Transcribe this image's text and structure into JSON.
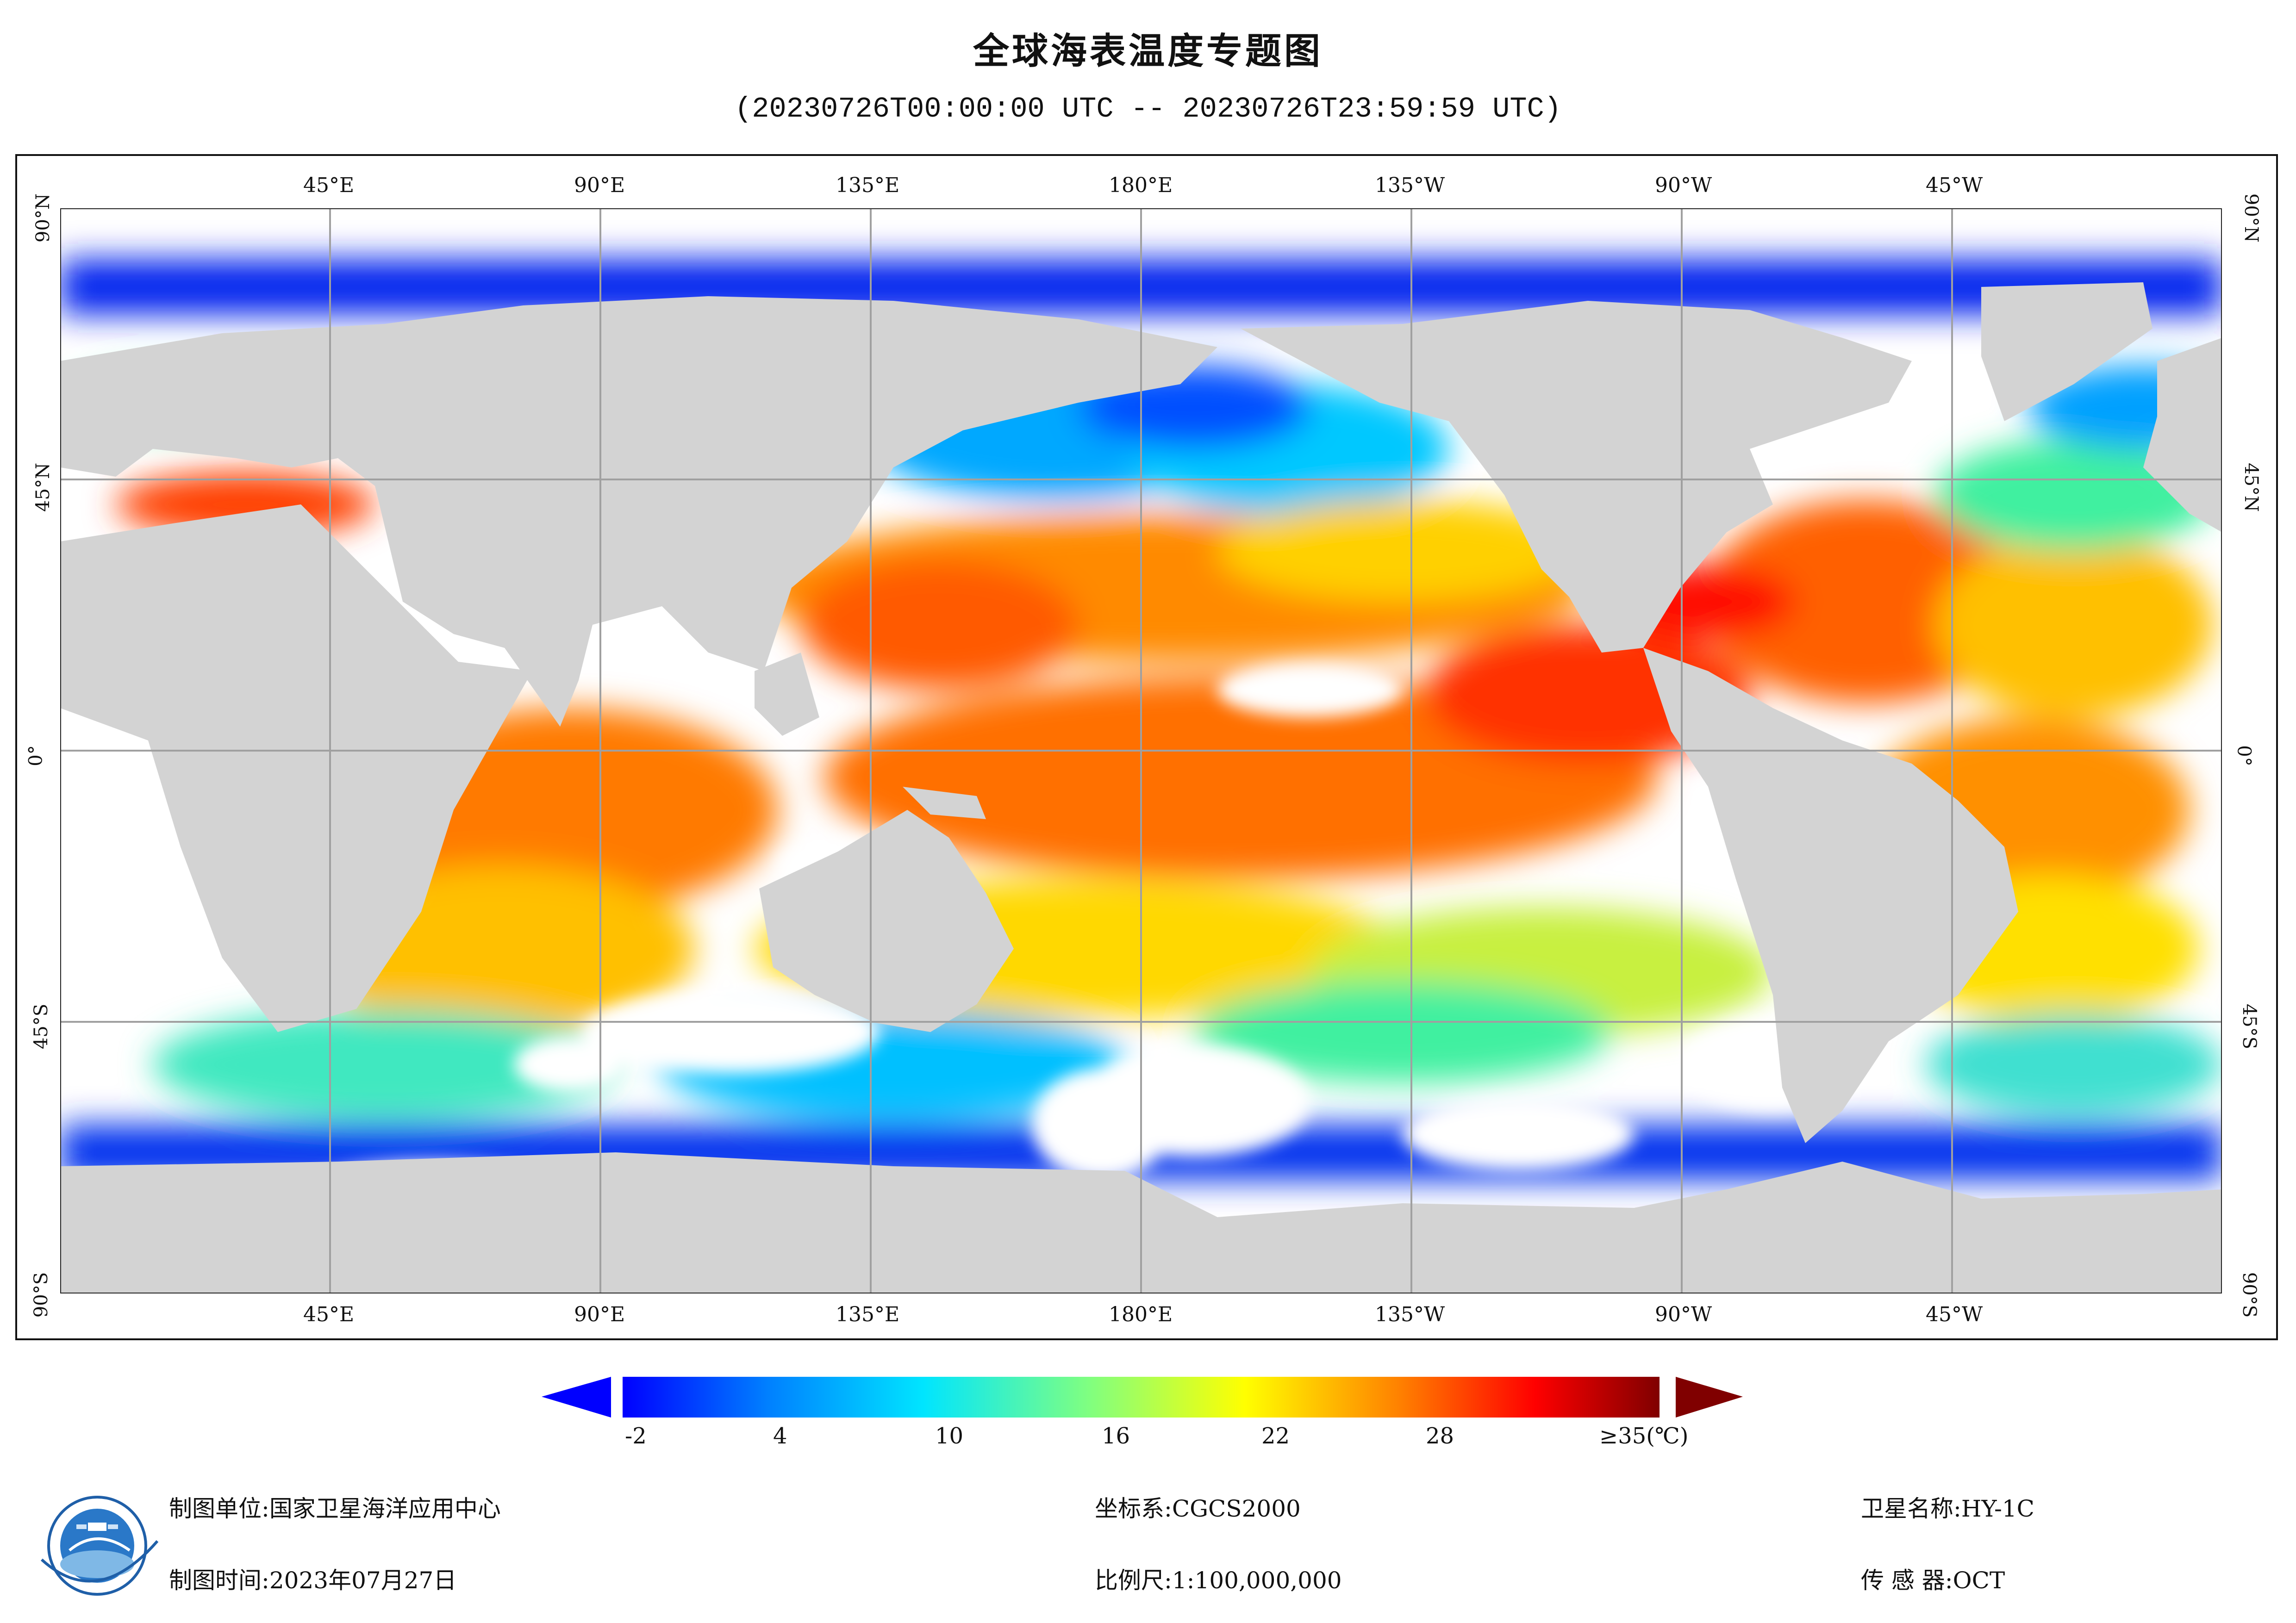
{
  "title": "全球海表温度专题图",
  "subtitle": "(20230726T00:00:00 UTC -- 20230726T23:59:59 UTC)",
  "map": {
    "top_lon_labels": [
      "45°E",
      "90°E",
      "135°E",
      "180°E",
      "135°W",
      "90°W",
      "45°W"
    ],
    "bottom_lon_labels": [
      "45°E",
      "90°E",
      "135°E",
      "180°E",
      "135°W",
      "90°W",
      "45°W"
    ],
    "left_lat_labels": [
      "90°N",
      "45°N",
      "0°",
      "45°S",
      "90°S"
    ],
    "right_lat_labels": [
      "90°N",
      "45°N",
      "0°",
      "45°S",
      "90°S"
    ],
    "colors": {
      "land": "#d3d3d3",
      "no_data": "#ffffff",
      "grid": "#a0a0a0"
    }
  },
  "colorbar": {
    "tick_labels": [
      "-2",
      "4",
      "10",
      "16",
      "22",
      "28",
      "≥35(℃)"
    ],
    "colors": [
      "#0000ff",
      "#0080ff",
      "#00e5ff",
      "#80ff80",
      "#ffff00",
      "#ff8000",
      "#ff0000",
      "#800000"
    ]
  },
  "footer": {
    "agency_label": "制图单位:",
    "agency": "国家卫星海洋应用中心",
    "date_label": "制图时间:",
    "date": "2023年07月27日",
    "crs_label": "坐标系:",
    "crs": "CGCS2000",
    "scale_label": "比例尺:",
    "scale": "1:100,000,000",
    "satellite_label": "卫星名称:",
    "satellite": "HY-1C",
    "sensor_label": "传 感 器:",
    "sensor": "OCT"
  },
  "logo_icon": "nsoas-logo-icon"
}
